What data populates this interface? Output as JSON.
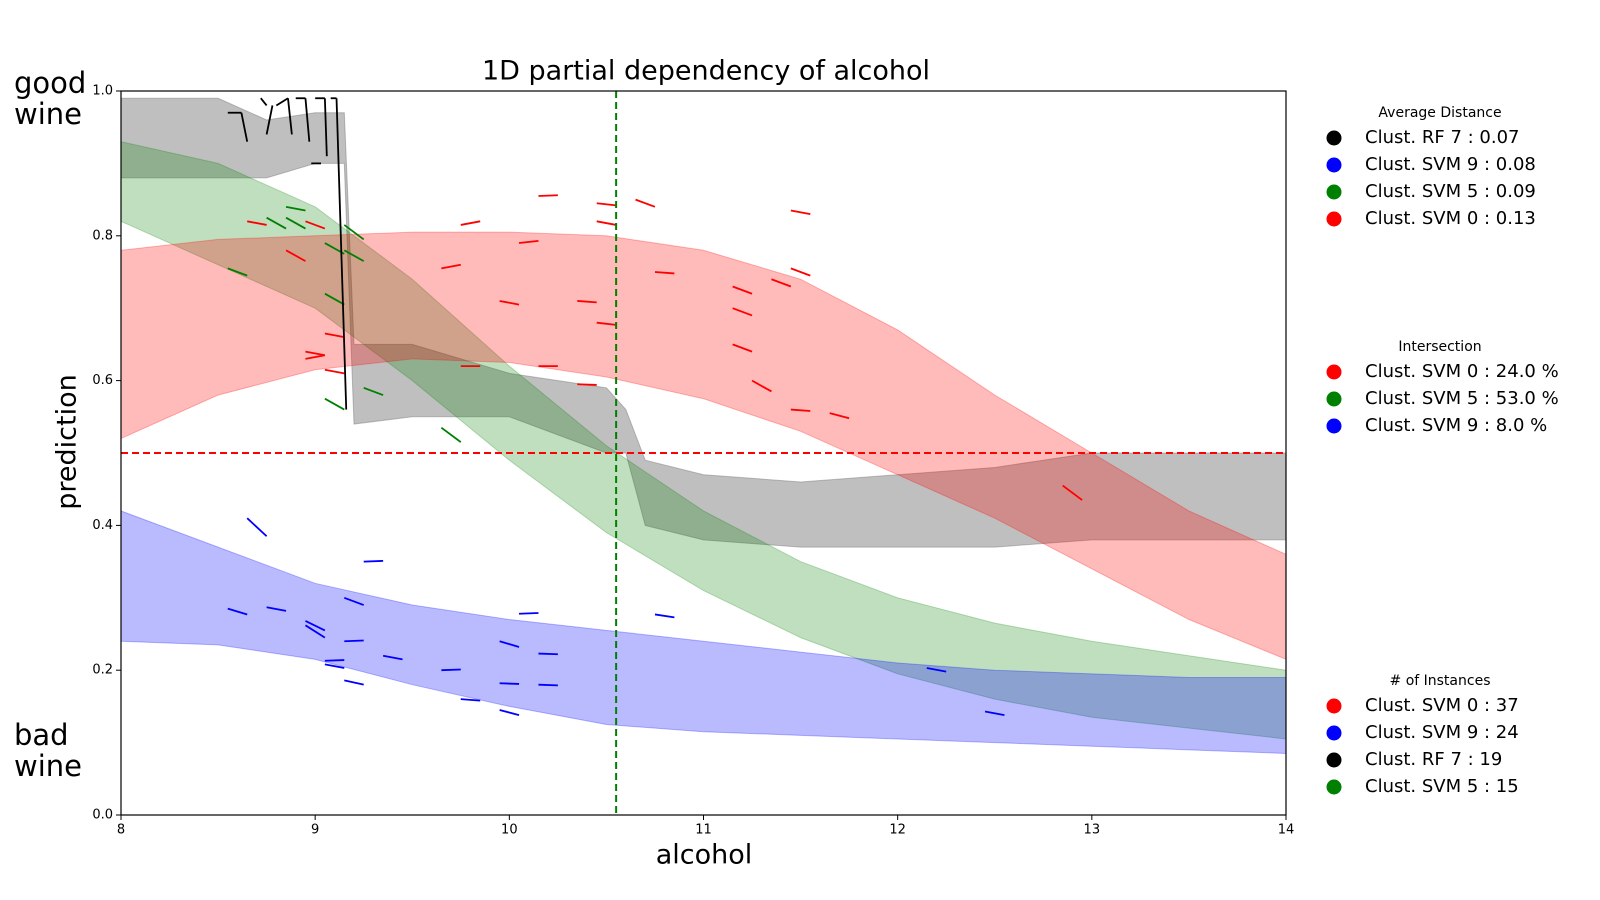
{
  "chart_data": {
    "type": "band",
    "title": "1D partial dependency of alcohol",
    "x_label": "alcohol",
    "y_label": "prediction",
    "top_annotation": "good wine",
    "bottom_annotation": "bad wine",
    "xlim": [
      8,
      14
    ],
    "ylim": [
      0,
      1
    ],
    "xticks": [
      8,
      9,
      10,
      11,
      12,
      13,
      14
    ],
    "yticks": [
      {
        "value": 0,
        "label": "0.0"
      },
      0.2,
      0.4,
      0.6,
      0.8,
      {
        "value": 1,
        "label": "1.0"
      }
    ],
    "vline": {
      "x": 10.55,
      "color": "#008000"
    },
    "hline": {
      "y": 0.5,
      "color": "#ff0000"
    },
    "bands": [
      {
        "color": "#808080",
        "opacity": 0.5,
        "x": [
          8,
          8.5,
          8.75,
          9.0,
          9.15,
          9.2,
          9.5,
          10,
          10.5,
          10.6,
          10.7,
          11,
          11.5,
          12,
          12.5,
          13,
          13.5,
          14
        ],
        "upper": [
          0.99,
          0.99,
          0.96,
          0.97,
          0.97,
          0.65,
          0.65,
          0.61,
          0.59,
          0.56,
          0.49,
          0.47,
          0.46,
          0.47,
          0.48,
          0.5,
          0.5,
          0.5
        ],
        "lower": [
          0.88,
          0.88,
          0.88,
          0.9,
          0.9,
          0.54,
          0.55,
          0.55,
          0.5,
          0.5,
          0.4,
          0.38,
          0.37,
          0.37,
          0.37,
          0.38,
          0.38,
          0.38
        ]
      },
      {
        "color": "#008000",
        "opacity": 0.25,
        "x": [
          8,
          8.5,
          9,
          9.5,
          10,
          10.5,
          11,
          11.5,
          12,
          12.5,
          13,
          13.5,
          14
        ],
        "upper": [
          0.93,
          0.9,
          0.84,
          0.74,
          0.62,
          0.51,
          0.42,
          0.35,
          0.3,
          0.265,
          0.24,
          0.22,
          0.2
        ],
        "lower": [
          0.82,
          0.76,
          0.7,
          0.6,
          0.49,
          0.39,
          0.31,
          0.245,
          0.195,
          0.16,
          0.135,
          0.12,
          0.105
        ]
      },
      {
        "color": "#ff0000",
        "opacity": 0.27,
        "x": [
          8,
          8.5,
          9,
          9.5,
          10,
          10.5,
          11,
          11.5,
          12,
          12.5,
          13,
          13.5,
          14
        ],
        "upper": [
          0.78,
          0.795,
          0.8,
          0.805,
          0.805,
          0.8,
          0.78,
          0.74,
          0.67,
          0.58,
          0.5,
          0.42,
          0.36
        ],
        "lower": [
          0.52,
          0.58,
          0.615,
          0.63,
          0.625,
          0.605,
          0.575,
          0.53,
          0.47,
          0.41,
          0.34,
          0.27,
          0.215
        ]
      },
      {
        "color": "#0000ff",
        "opacity": 0.27,
        "x": [
          8,
          8.5,
          9,
          9.5,
          10,
          10.5,
          11,
          11.5,
          12,
          12.5,
          13,
          13.5,
          14
        ],
        "upper": [
          0.42,
          0.37,
          0.32,
          0.29,
          0.27,
          0.255,
          0.24,
          0.225,
          0.21,
          0.2,
          0.195,
          0.19,
          0.19
        ],
        "lower": [
          0.24,
          0.235,
          0.215,
          0.18,
          0.15,
          0.125,
          0.115,
          0.11,
          0.105,
          0.1,
          0.095,
          0.09,
          0.085
        ]
      }
    ],
    "segments": [
      {
        "color": "#ff0000",
        "lines": [
          {
            "x": [
              8.65,
              8.75
            ],
            "y": [
              0.82,
              0.815
            ]
          },
          {
            "x": [
              8.95,
              9.05
            ],
            "y": [
              0.82,
              0.81
            ]
          },
          {
            "x": [
              8.85,
              8.95
            ],
            "y": [
              0.78,
              0.765
            ]
          },
          {
            "x": [
              9.05,
              9.15
            ],
            "y": [
              0.665,
              0.66
            ]
          },
          {
            "x": [
              8.95,
              9.05
            ],
            "y": [
              0.64,
              0.635
            ]
          },
          {
            "x": [
              8.95,
              9.05
            ],
            "y": [
              0.63,
              0.635
            ]
          },
          {
            "x": [
              9.05,
              9.15
            ],
            "y": [
              0.615,
              0.61
            ]
          },
          {
            "x": [
              9.65,
              9.75
            ],
            "y": [
              0.755,
              0.76
            ]
          },
          {
            "x": [
              9.75,
              9.85
            ],
            "y": [
              0.815,
              0.82
            ]
          },
          {
            "x": [
              9.95,
              10.05
            ],
            "y": [
              0.71,
              0.705
            ]
          },
          {
            "x": [
              10.05,
              10.15
            ],
            "y": [
              0.79,
              0.793
            ]
          },
          {
            "x": [
              10.15,
              10.25
            ],
            "y": [
              0.855,
              0.856
            ]
          },
          {
            "x": [
              9.75,
              9.85
            ],
            "y": [
              0.62,
              0.62
            ]
          },
          {
            "x": [
              10.15,
              10.25
            ],
            "y": [
              0.62,
              0.62
            ]
          },
          {
            "x": [
              10.35,
              10.45
            ],
            "y": [
              0.71,
              0.708
            ]
          },
          {
            "x": [
              10.35,
              10.45
            ],
            "y": [
              0.595,
              0.594
            ]
          },
          {
            "x": [
              10.45,
              10.55
            ],
            "y": [
              0.845,
              0.842
            ]
          },
          {
            "x": [
              10.45,
              10.55
            ],
            "y": [
              0.82,
              0.815
            ]
          },
          {
            "x": [
              10.45,
              10.55
            ],
            "y": [
              0.68,
              0.677
            ]
          },
          {
            "x": [
              10.65,
              10.75
            ],
            "y": [
              0.85,
              0.84
            ]
          },
          {
            "x": [
              10.75,
              10.85
            ],
            "y": [
              0.75,
              0.748
            ]
          },
          {
            "x": [
              11.15,
              11.25
            ],
            "y": [
              0.73,
              0.72
            ]
          },
          {
            "x": [
              11.15,
              11.25
            ],
            "y": [
              0.7,
              0.69
            ]
          },
          {
            "x": [
              11.15,
              11.25
            ],
            "y": [
              0.65,
              0.64
            ]
          },
          {
            "x": [
              11.25,
              11.35
            ],
            "y": [
              0.6,
              0.585
            ]
          },
          {
            "x": [
              11.35,
              11.45
            ],
            "y": [
              0.74,
              0.73
            ]
          },
          {
            "x": [
              11.45,
              11.55
            ],
            "y": [
              0.755,
              0.745
            ]
          },
          {
            "x": [
              11.45,
              11.55
            ],
            "y": [
              0.835,
              0.83
            ]
          },
          {
            "x": [
              11.45,
              11.55
            ],
            "y": [
              0.56,
              0.558
            ]
          },
          {
            "x": [
              11.65,
              11.75
            ],
            "y": [
              0.555,
              0.548
            ]
          },
          {
            "x": [
              12.85,
              12.95
            ],
            "y": [
              0.455,
              0.435
            ]
          }
        ]
      },
      {
        "color": "#008000",
        "lines": [
          {
            "x": [
              8.55,
              8.65
            ],
            "y": [
              0.755,
              0.745
            ]
          },
          {
            "x": [
              8.75,
              8.85
            ],
            "y": [
              0.825,
              0.81
            ]
          },
          {
            "x": [
              8.85,
              8.95
            ],
            "y": [
              0.84,
              0.835
            ]
          },
          {
            "x": [
              8.85,
              8.95
            ],
            "y": [
              0.825,
              0.81
            ]
          },
          {
            "x": [
              9.05,
              9.15
            ],
            "y": [
              0.79,
              0.775
            ]
          },
          {
            "x": [
              9.15,
              9.25
            ],
            "y": [
              0.815,
              0.795
            ]
          },
          {
            "x": [
              9.15,
              9.25
            ],
            "y": [
              0.78,
              0.765
            ]
          },
          {
            "x": [
              9.05,
              9.15
            ],
            "y": [
              0.72,
              0.705
            ]
          },
          {
            "x": [
              9.05,
              9.15
            ],
            "y": [
              0.575,
              0.56
            ]
          },
          {
            "x": [
              9.25,
              9.35
            ],
            "y": [
              0.59,
              0.58
            ]
          },
          {
            "x": [
              9.65,
              9.75
            ],
            "y": [
              0.535,
              0.515
            ]
          }
        ]
      },
      {
        "color": "#0000ff",
        "lines": [
          {
            "x": [
              8.65,
              8.75
            ],
            "y": [
              0.41,
              0.385
            ]
          },
          {
            "x": [
              8.55,
              8.65
            ],
            "y": [
              0.285,
              0.277
            ]
          },
          {
            "x": [
              8.75,
              8.85
            ],
            "y": [
              0.287,
              0.282
            ]
          },
          {
            "x": [
              8.95,
              9.05
            ],
            "y": [
              0.268,
              0.255
            ]
          },
          {
            "x": [
              8.95,
              9.05
            ],
            "y": [
              0.262,
              0.245
            ]
          },
          {
            "x": [
              9.05,
              9.15
            ],
            "y": [
              0.213,
              0.214
            ]
          },
          {
            "x": [
              9.05,
              9.15
            ],
            "y": [
              0.208,
              0.203
            ]
          },
          {
            "x": [
              9.15,
              9.25
            ],
            "y": [
              0.3,
              0.29
            ]
          },
          {
            "x": [
              9.15,
              9.25
            ],
            "y": [
              0.24,
              0.241
            ]
          },
          {
            "x": [
              9.15,
              9.25
            ],
            "y": [
              0.186,
              0.18
            ]
          },
          {
            "x": [
              9.25,
              9.35
            ],
            "y": [
              0.35,
              0.351
            ]
          },
          {
            "x": [
              9.35,
              9.45
            ],
            "y": [
              0.22,
              0.215
            ]
          },
          {
            "x": [
              9.65,
              9.75
            ],
            "y": [
              0.2,
              0.201
            ]
          },
          {
            "x": [
              9.75,
              9.85
            ],
            "y": [
              0.16,
              0.158
            ]
          },
          {
            "x": [
              9.95,
              10.05
            ],
            "y": [
              0.24,
              0.232
            ]
          },
          {
            "x": [
              9.95,
              10.05
            ],
            "y": [
              0.182,
              0.181
            ]
          },
          {
            "x": [
              9.95,
              10.05
            ],
            "y": [
              0.145,
              0.138
            ]
          },
          {
            "x": [
              10.05,
              10.15
            ],
            "y": [
              0.278,
              0.279
            ]
          },
          {
            "x": [
              10.15,
              10.25
            ],
            "y": [
              0.223,
              0.222
            ]
          },
          {
            "x": [
              10.15,
              10.25
            ],
            "y": [
              0.18,
              0.179
            ]
          },
          {
            "x": [
              10.75,
              10.85
            ],
            "y": [
              0.277,
              0.273
            ]
          },
          {
            "x": [
              12.15,
              12.25
            ],
            "y": [
              0.203,
              0.198
            ]
          },
          {
            "x": [
              12.45,
              12.55
            ],
            "y": [
              0.143,
              0.138
            ]
          }
        ]
      },
      {
        "color": "#000000",
        "lines": [
          {
            "x": [
              8.55,
              8.62
            ],
            "y": [
              0.97,
              0.97
            ]
          },
          {
            "x": [
              8.62,
              8.65
            ],
            "y": [
              0.97,
              0.93
            ]
          },
          {
            "x": [
              8.72,
              8.75
            ],
            "y": [
              0.99,
              0.98
            ]
          },
          {
            "x": [
              8.75,
              8.78
            ],
            "y": [
              0.94,
              0.98
            ]
          },
          {
            "x": [
              8.8,
              8.86
            ],
            "y": [
              0.98,
              0.99
            ]
          },
          {
            "x": [
              8.86,
              8.88
            ],
            "y": [
              0.99,
              0.94
            ]
          },
          {
            "x": [
              8.9,
              8.95
            ],
            "y": [
              0.99,
              0.99
            ]
          },
          {
            "x": [
              8.95,
              8.97
            ],
            "y": [
              0.99,
              0.93
            ]
          },
          {
            "x": [
              8.98,
              9.03
            ],
            "y": [
              0.9,
              0.9
            ]
          },
          {
            "x": [
              9.0,
              9.05
            ],
            "y": [
              0.99,
              0.99
            ]
          },
          {
            "x": [
              9.05,
              9.06
            ],
            "y": [
              0.99,
              0.91
            ]
          },
          {
            "x": [
              9.08,
              9.11
            ],
            "y": [
              0.99,
              0.99
            ]
          },
          {
            "x": [
              9.11,
              9.16
            ],
            "y": [
              0.99,
              0.56
            ]
          }
        ]
      }
    ],
    "legends": [
      {
        "title": "Average Distance",
        "entries": [
          {
            "label": "Clust. RF 7 : 0.07",
            "color": "#000000"
          },
          {
            "label": "Clust. SVM 9 : 0.08",
            "color": "#0000ff"
          },
          {
            "label": "Clust. SVM 5 : 0.09",
            "color": "#008000"
          },
          {
            "label": "Clust. SVM 0 : 0.13",
            "color": "#ff0000"
          }
        ]
      },
      {
        "title": "Intersection",
        "entries": [
          {
            "label": "Clust. SVM 0 : 24.0 %",
            "color": "#ff0000"
          },
          {
            "label": "Clust. SVM 5 : 53.0 %",
            "color": "#008000"
          },
          {
            "label": "Clust. SVM 9 : 8.0 %",
            "color": "#0000ff"
          }
        ]
      },
      {
        "title": "# of Instances",
        "entries": [
          {
            "label": "Clust. SVM 0 : 37",
            "color": "#ff0000"
          },
          {
            "label": "Clust. SVM 9 : 24",
            "color": "#0000ff"
          },
          {
            "label": "Clust. RF 7 : 19",
            "color": "#000000"
          },
          {
            "label": "Clust. SVM 5 : 15",
            "color": "#008000"
          }
        ]
      }
    ]
  }
}
